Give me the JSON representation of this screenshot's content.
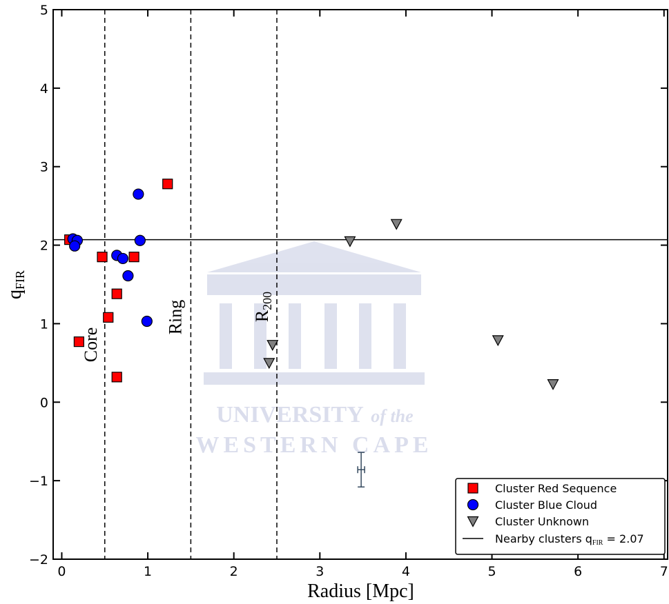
{
  "chart_data": {
    "type": "scatter",
    "xlabel": "Radius [Mpc]",
    "ylabel": {
      "text": "q",
      "sub": "FIR"
    },
    "xlim": [
      -0.1,
      7.05
    ],
    "ylim": [
      -2,
      5
    ],
    "xticks": [
      0,
      1,
      2,
      3,
      4,
      5,
      6,
      7
    ],
    "yticks": [
      {
        "value": -2,
        "label": "−2"
      },
      {
        "value": -1,
        "label": "−1"
      },
      0,
      1,
      2,
      3,
      4,
      5
    ],
    "series": [
      {
        "name": "Cluster Red Sequence",
        "color": "#ff0000",
        "marker": "square",
        "x": [
          0.09,
          0.2,
          0.47,
          0.54,
          0.64,
          0.64,
          0.84,
          1.23
        ],
        "values": [
          2.07,
          0.77,
          1.85,
          1.08,
          1.38,
          0.32,
          1.85,
          2.78
        ]
      },
      {
        "name": "Cluster Blue Cloud",
        "color": "#0000ff",
        "marker": "circle",
        "x": [
          0.13,
          0.18,
          0.15,
          0.89,
          0.91,
          0.64,
          0.71,
          0.77,
          0.99
        ],
        "values": [
          2.08,
          2.06,
          1.99,
          2.65,
          2.06,
          1.87,
          1.83,
          1.61,
          1.03
        ]
      },
      {
        "name": "Cluster Unknown",
        "color": "#808080",
        "marker": "triangle",
        "x": [
          2.45,
          2.41,
          3.35,
          3.89,
          5.07,
          5.71
        ],
        "values": [
          0.73,
          0.5,
          2.05,
          2.27,
          0.79,
          0.23
        ]
      }
    ],
    "hline": {
      "value": 2.07,
      "label": "Nearby clusters q",
      "label_sub": "FIR",
      "label_tail": " = 2.07"
    },
    "vlines": [
      {
        "value": 0.5,
        "label": "Core"
      },
      {
        "value": 1.5,
        "label": "Ring"
      },
      {
        "value": 2.5,
        "label": "R",
        "label_sub": "200"
      }
    ],
    "errorbar": {
      "x": 3.48,
      "y": -0.86,
      "xerr": 0.04,
      "yerr": 0.22,
      "color": "#34495e"
    },
    "legend": "lower right",
    "watermark": [
      "UNIVERSITY",
      "of the",
      "WESTERN CAPE"
    ]
  }
}
